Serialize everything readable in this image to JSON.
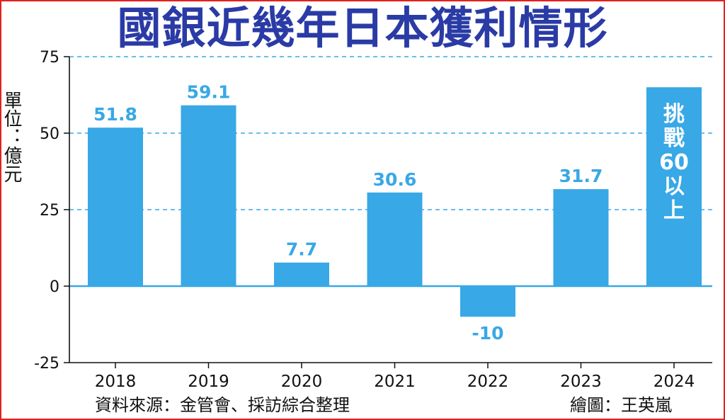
{
  "chart_data": {
    "type": "bar",
    "title": "國銀近幾年日本獲利情形",
    "ylabel": "單位：億元",
    "xlabel": "",
    "categories": [
      "2018",
      "2019",
      "2020",
      "2021",
      "2022",
      "2023",
      "2024"
    ],
    "values": [
      51.8,
      59.1,
      7.7,
      30.6,
      -10,
      31.7,
      65
    ],
    "data_labels": [
      "51.8",
      "59.1",
      "7.7",
      "30.6",
      "-10",
      "31.7",
      ""
    ],
    "target_label": [
      "挑",
      "戰",
      "60",
      "以",
      "上"
    ],
    "ylim": [
      -25,
      75
    ],
    "yticks": [
      75,
      50,
      25,
      0,
      -25
    ],
    "grid": "dashed horizontal",
    "bar_color": "#38a8e6",
    "target_bar_color": "#38a8e6",
    "label_color": "#38a8e6",
    "title_color": "#2a3ba6"
  },
  "footer": {
    "source": "資料來源：金管會、採訪綜合整理",
    "credit": "繪圖：王英嵐"
  }
}
